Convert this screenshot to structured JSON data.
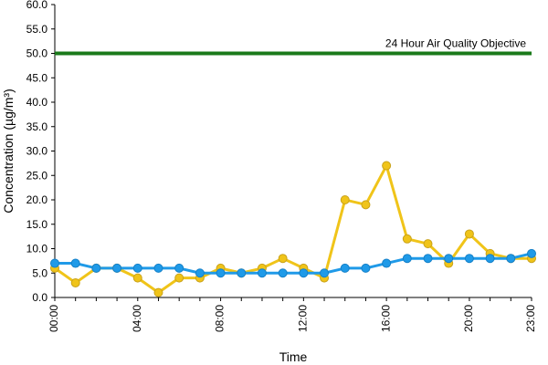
{
  "chart_data": {
    "type": "line",
    "title": "",
    "xlabel": "Time",
    "ylabel": "Concentration (µg/m³)",
    "x": [
      "00:00",
      "01:00",
      "02:00",
      "03:00",
      "04:00",
      "05:00",
      "06:00",
      "07:00",
      "08:00",
      "09:00",
      "10:00",
      "11:00",
      "12:00",
      "13:00",
      "14:00",
      "15:00",
      "16:00",
      "17:00",
      "18:00",
      "19:00",
      "20:00",
      "21:00",
      "22:00",
      "23:00"
    ],
    "x_tick_labels": [
      "00:00",
      "04:00",
      "08:00",
      "12:00",
      "16:00",
      "20:00",
      "23:00"
    ],
    "y_tick_labels": [
      "0.0",
      "5.0",
      "10.0",
      "15.0",
      "20.0",
      "25.0",
      "30.0",
      "35.0",
      "40.0",
      "45.0",
      "50.0",
      "55.0",
      "60.0"
    ],
    "ylim": [
      0,
      60
    ],
    "grid": false,
    "series": [
      {
        "color": "#f0c419",
        "values": [
          6,
          3,
          6,
          6,
          4,
          1,
          4,
          4,
          6,
          5,
          6,
          8,
          6,
          4,
          20,
          19,
          27,
          12,
          11,
          7,
          13,
          9,
          8,
          8
        ]
      },
      {
        "color": "#1f9ae8",
        "values": [
          7,
          7,
          6,
          6,
          6,
          6,
          6,
          5,
          5,
          5,
          5,
          5,
          5,
          5,
          6,
          6,
          7,
          8,
          8,
          8,
          8,
          8,
          8,
          9
        ]
      }
    ],
    "objective": {
      "value": 50,
      "label": "24 Hour Air Quality Objective",
      "color": "#1a7a1a"
    }
  }
}
